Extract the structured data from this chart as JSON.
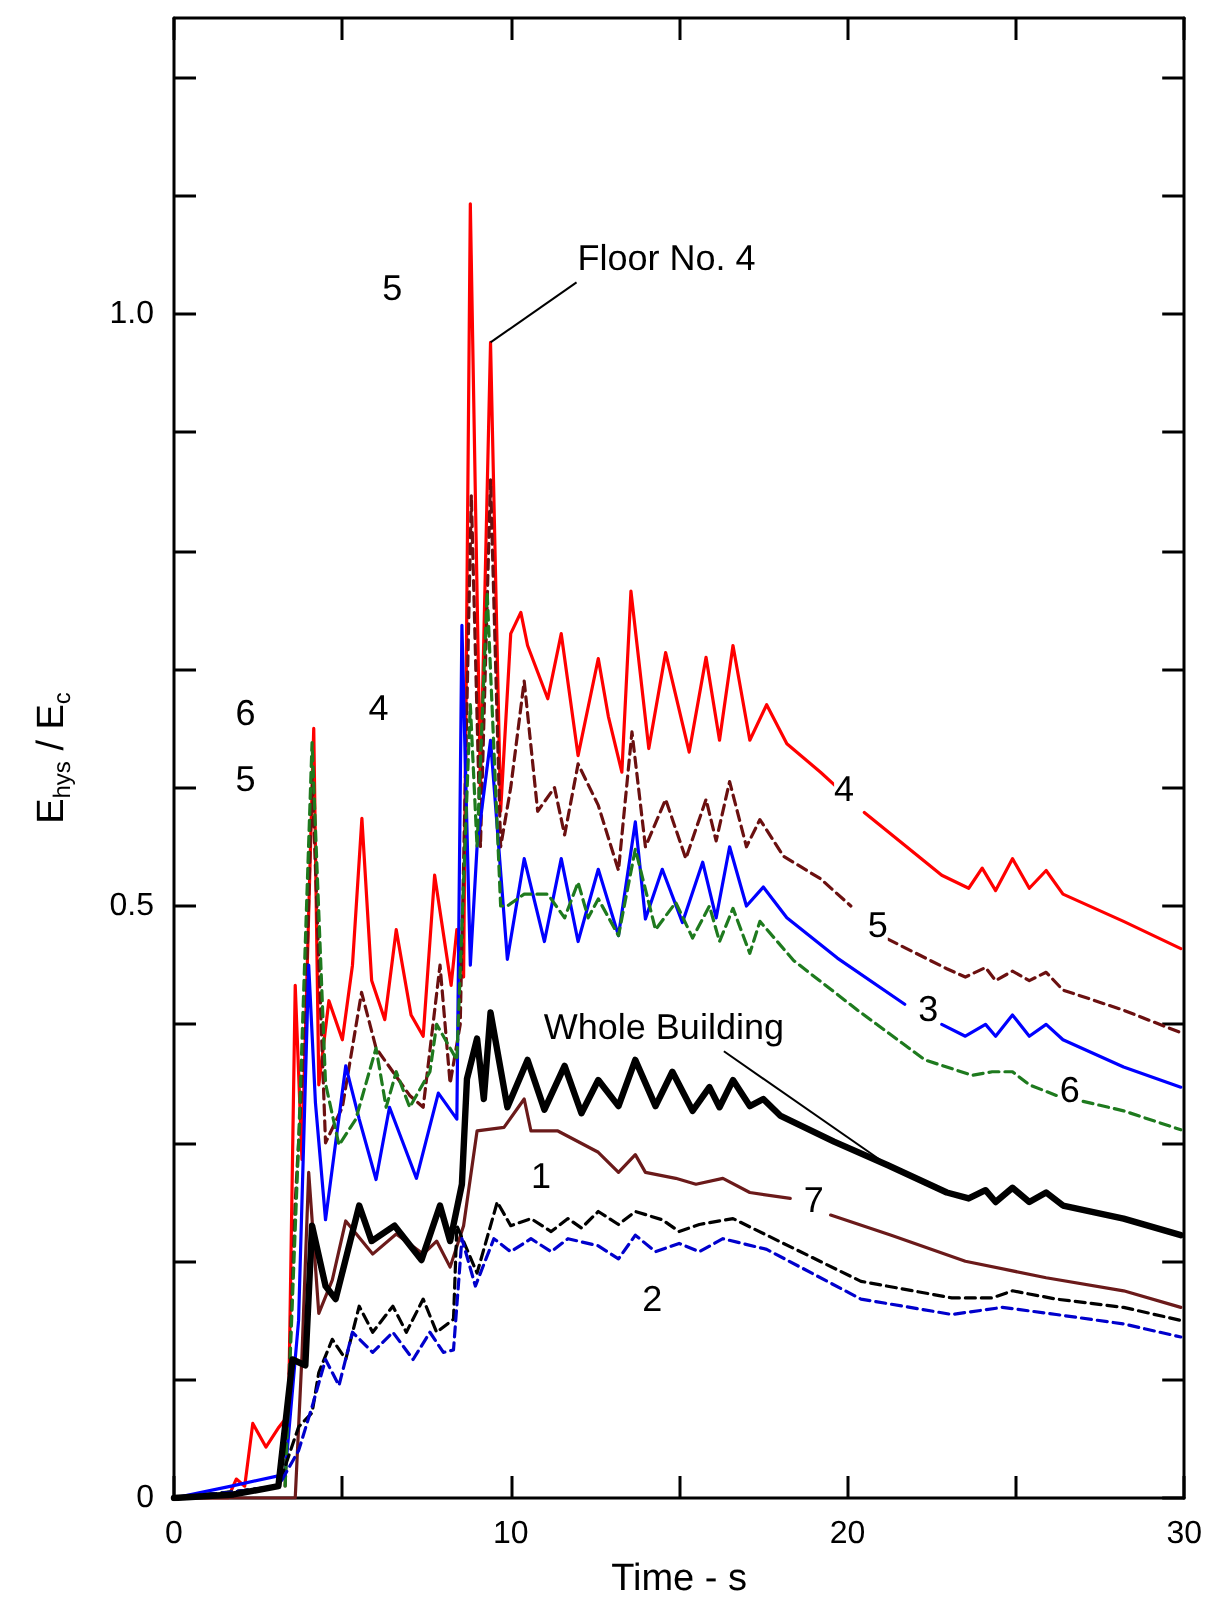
{
  "chart_data": {
    "type": "line",
    "xlabel": "Time - s",
    "ylabel": "E$_{hys}$ / E$_{c}$",
    "xlim": [
      0,
      30
    ],
    "ylim": [
      0,
      1.25
    ],
    "xticks": [
      0,
      {
        "value": 5,
        "label": null
      },
      10,
      {
        "value": 15,
        "label": null
      },
      20,
      {
        "value": 25,
        "label": null
      },
      30
    ],
    "yticks": [
      0,
      {
        "value": 0.1,
        "label": null
      },
      {
        "value": 0.2,
        "label": null
      },
      {
        "value": 0.3,
        "label": null
      },
      {
        "value": 0.4,
        "label": null
      },
      0.5,
      {
        "value": 0.6,
        "label": null
      },
      {
        "value": 0.7,
        "label": null
      },
      {
        "value": 0.8,
        "label": null
      },
      {
        "value": 0.9,
        "label": null
      },
      {
        "value": 1,
        "label": "1.0"
      },
      {
        "value": 1.1,
        "label": null
      },
      {
        "value": 1.2,
        "label": null
      }
    ],
    "series": [
      {
        "color": "#ff0000",
        "line_style": "solid",
        "x": [
          0,
          1.6,
          1.85,
          2.1,
          2.34,
          2.73,
          3.12,
          3.4,
          3.6,
          3.8,
          4.15,
          4.3,
          4.6,
          5.0,
          5.3,
          5.58,
          5.87,
          6.26,
          6.6,
          7.04,
          7.4,
          7.74,
          8.23,
          8.4,
          8.6,
          8.8,
          9.1,
          9.4,
          9.7,
          10.0,
          10.3,
          10.5,
          11.1,
          11.5,
          12.0,
          12.6,
          12.9,
          13.3,
          13.57,
          14.1,
          14.6,
          15.3,
          15.8,
          16.2,
          16.6,
          17.1,
          17.6,
          18.2,
          19.2,
          19.7,
          19.9,
          20.5,
          22.8,
          23.6,
          24.0,
          24.4,
          24.9,
          25.4,
          25.9,
          26.4,
          28.2,
          29.9
        ],
        "values": [
          0,
          0,
          0.016,
          0.01,
          0.063,
          0.043,
          0.06,
          0.07,
          0.433,
          0.286,
          0.65,
          0.349,
          0.42,
          0.387,
          0.45,
          0.574,
          0.437,
          0.404,
          0.48,
          0.408,
          0.39,
          0.526,
          0.433,
          0.48,
          0.44,
          1.093,
          0.6,
          0.976,
          0.58,
          0.73,
          0.748,
          0.72,
          0.675,
          0.73,
          0.627,
          0.709,
          0.66,
          0.613,
          0.766,
          0.633,
          0.714,
          0.63,
          0.71,
          0.64,
          0.72,
          0.64,
          0.67,
          0.637,
          0.613,
          0.6,
          null,
          0.579,
          0.526,
          0.515,
          0.532,
          0.513,
          0.54,
          0.515,
          0.53,
          0.51,
          0.487,
          0.464
        ]
      },
      {
        "color": "#6b1010",
        "line_style": "dashed",
        "x": [
          0,
          3.3,
          3.6,
          3.9,
          4.1,
          4.5,
          5.0,
          5.57,
          6.0,
          6.5,
          7.0,
          7.4,
          7.9,
          8.2,
          8.5,
          8.83,
          9.1,
          9.4,
          9.7,
          10.0,
          10.4,
          10.8,
          11.3,
          11.6,
          12.0,
          12.6,
          13.2,
          13.6,
          14.0,
          14.6,
          15.2,
          15.8,
          16.1,
          16.5,
          17.0,
          17.4,
          18.1,
          19.2,
          20.1,
          20.6,
          21.2,
          22.95,
          23.5,
          24.1,
          24.4,
          24.9,
          25.4,
          25.9,
          26.4,
          28.2,
          29.9
        ],
        "values": [
          0,
          0.01,
          0.25,
          0.4,
          0.61,
          0.3,
          0.33,
          0.427,
          0.38,
          0.36,
          0.34,
          0.33,
          0.45,
          0.35,
          0.4,
          0.847,
          0.55,
          0.86,
          0.55,
          0.6,
          0.69,
          0.58,
          0.6,
          0.56,
          0.62,
          0.585,
          0.53,
          0.647,
          0.55,
          0.59,
          0.54,
          0.59,
          0.555,
          0.605,
          0.55,
          0.573,
          0.542,
          0.523,
          0.5,
          null,
          0.472,
          0.447,
          0.44,
          0.448,
          0.437,
          0.445,
          0.437,
          0.444,
          0.429,
          0.412,
          0.393
        ]
      },
      {
        "color": "#0000ff",
        "line_style": "solid",
        "x": [
          0,
          1.7,
          3.3,
          3.7,
          4.0,
          4.2,
          4.5,
          5.1,
          5.5,
          6.0,
          6.4,
          6.8,
          7.2,
          7.85,
          8.4,
          8.55,
          8.8,
          9.0,
          9.4,
          9.9,
          10.4,
          11.0,
          11.5,
          12.0,
          12.6,
          13.2,
          13.7,
          14.0,
          14.5,
          15.1,
          15.7,
          16.1,
          16.5,
          17.0,
          17.5,
          18.2,
          19.7,
          21.7,
          22.0,
          22.8,
          23.5,
          24.1,
          24.4,
          24.9,
          25.4,
          25.9,
          26.4,
          28.2,
          29.9
        ],
        "values": [
          0,
          0.01,
          0.02,
          0.15,
          0.45,
          0.334,
          0.235,
          0.365,
          0.32,
          0.269,
          0.33,
          0.3,
          0.27,
          0.342,
          0.32,
          0.737,
          0.45,
          0.55,
          0.64,
          0.455,
          0.54,
          0.47,
          0.54,
          0.47,
          0.531,
          0.475,
          0.571,
          0.489,
          0.531,
          0.486,
          0.537,
          0.49,
          0.55,
          0.5,
          0.516,
          0.49,
          0.456,
          0.417,
          null,
          0.4,
          0.39,
          0.4,
          0.39,
          0.408,
          0.39,
          0.4,
          0.387,
          0.364,
          0.347
        ]
      },
      {
        "color": "#1e7a1e",
        "line_style": "dashed",
        "x": [
          0,
          3.3,
          3.7,
          4.1,
          4.5,
          4.9,
          5.4,
          6.0,
          6.3,
          6.6,
          7.0,
          7.6,
          7.8,
          8.4,
          8.8,
          9.0,
          9.3,
          9.7,
          9.9,
          10.4,
          11.1,
          11.6,
          12.0,
          12.3,
          12.6,
          13.2,
          13.7,
          14.3,
          14.9,
          15.4,
          15.9,
          16.2,
          16.6,
          17.1,
          17.4,
          18.4,
          20.3,
          22.3,
          23.7,
          24.3,
          24.9,
          25.4,
          26.2,
          26.4,
          27.0,
          28.2,
          29.9
        ],
        "values": [
          0,
          0.01,
          0.3,
          0.638,
          0.35,
          0.298,
          0.32,
          0.38,
          0.33,
          0.36,
          0.33,
          0.36,
          0.4,
          0.37,
          0.67,
          0.55,
          0.765,
          0.5,
          0.5,
          0.51,
          0.51,
          0.49,
          0.52,
          0.49,
          0.506,
          0.475,
          0.548,
          0.48,
          0.503,
          0.473,
          0.5,
          0.47,
          0.498,
          0.46,
          0.487,
          0.454,
          0.412,
          0.37,
          0.357,
          0.36,
          0.36,
          0.349,
          0.34,
          null,
          0.335,
          0.327,
          0.311
        ]
      },
      {
        "color": "#6b1a1a",
        "line_style": "solid",
        "x": [
          0,
          3.6,
          3.8,
          4.0,
          4.3,
          4.7,
          5.1,
          5.9,
          6.6,
          7.4,
          7.8,
          8.2,
          8.6,
          9.0,
          9.8,
          10.4,
          10.6,
          11.4,
          12.6,
          13.2,
          13.7,
          14.0,
          14.9,
          15.5,
          16.3,
          17.1,
          18.3,
          18.9,
          19.5,
          21.3,
          23.5,
          25.9,
          28.2,
          29.9
        ],
        "values": [
          0,
          0,
          0.12,
          0.275,
          0.156,
          0.184,
          0.234,
          0.206,
          0.223,
          0.206,
          0.217,
          0.195,
          0.23,
          0.31,
          0.313,
          0.337,
          0.31,
          0.31,
          0.292,
          0.275,
          0.29,
          0.275,
          0.27,
          0.265,
          0.27,
          0.258,
          0.253,
          null,
          0.239,
          0.222,
          0.2,
          0.186,
          0.175,
          0.161
        ]
      },
      {
        "color": "#000000",
        "line_style": "dashed",
        "x": [
          0,
          1.7,
          3.1,
          3.7,
          4.1,
          4.3,
          4.7,
          5.1,
          5.5,
          5.9,
          6.5,
          6.9,
          7.4,
          7.8,
          8.3,
          8.4,
          9.0,
          9.6,
          10.0,
          10.6,
          11.2,
          11.7,
          12.1,
          12.6,
          13.2,
          13.7,
          14.5,
          15.0,
          15.6,
          16.6,
          17.6,
          20.4,
          23.1,
          24.3,
          24.9,
          26.2,
          28.2,
          29.9
        ],
        "values": [
          0,
          0.005,
          0.01,
          0.06,
          0.072,
          0.106,
          0.134,
          0.117,
          0.162,
          0.14,
          0.162,
          0.14,
          0.168,
          0.14,
          0.151,
          0.23,
          0.19,
          0.25,
          0.23,
          0.236,
          0.225,
          0.236,
          0.228,
          0.242,
          0.231,
          0.242,
          0.235,
          0.225,
          0.231,
          0.236,
          0.222,
          0.183,
          0.169,
          0.169,
          0.175,
          0.168,
          0.161,
          0.15
        ]
      },
      {
        "color": "#0000cc",
        "line_style": "dashed",
        "x": [
          0,
          1.7,
          3.1,
          3.7,
          4.1,
          4.5,
          4.9,
          5.3,
          5.9,
          6.5,
          7.1,
          7.6,
          8.0,
          8.3,
          8.55,
          8.95,
          9.5,
          10.0,
          10.6,
          11.2,
          11.7,
          12.6,
          13.2,
          13.7,
          14.3,
          15.0,
          15.6,
          16.3,
          17.6,
          20.4,
          23.1,
          24.6,
          26.2,
          28.2,
          29.9
        ],
        "values": [
          0,
          0.005,
          0.01,
          0.04,
          0.077,
          0.117,
          0.095,
          0.14,
          0.123,
          0.14,
          0.117,
          0.14,
          0.123,
          0.125,
          0.219,
          0.179,
          0.219,
          0.208,
          0.219,
          0.208,
          0.219,
          0.213,
          0.202,
          0.222,
          0.208,
          0.215,
          0.208,
          0.219,
          0.21,
          0.168,
          0.155,
          0.161,
          0.155,
          0.147,
          0.136
        ]
      },
      {
        "color": "#000000",
        "line_style": "solid",
        "x": [
          0,
          1.77,
          3.1,
          3.52,
          3.9,
          4.1,
          4.5,
          4.8,
          5.5,
          5.87,
          6.55,
          7.35,
          7.9,
          8.2,
          8.55,
          8.7,
          9.0,
          9.2,
          9.4,
          9.9,
          10.5,
          11.0,
          11.6,
          12.1,
          12.6,
          13.2,
          13.7,
          14.3,
          14.8,
          15.4,
          15.9,
          16.2,
          16.6,
          17.1,
          17.5,
          18.0,
          19.6,
          21.2,
          22.95,
          23.6,
          24.1,
          24.4,
          24.9,
          25.4,
          25.9,
          26.4,
          28.2,
          29.9
        ],
        "values": [
          0,
          0.003,
          0.01,
          0.117,
          0.112,
          0.23,
          0.179,
          0.168,
          0.247,
          0.217,
          0.23,
          0.201,
          0.247,
          0.217,
          0.265,
          0.354,
          0.388,
          0.337,
          0.41,
          0.33,
          0.37,
          0.328,
          0.365,
          0.325,
          0.353,
          0.331,
          0.37,
          0.331,
          0.36,
          0.327,
          0.347,
          0.33,
          0.353,
          0.331,
          0.337,
          0.323,
          0.301,
          0.281,
          0.258,
          0.253,
          0.26,
          0.25,
          0.262,
          0.25,
          0.258,
          0.247,
          0.236,
          0.222
        ]
      }
    ],
    "annotations": [
      {
        "text": "Floor No. 4",
        "x": 9.4,
        "y": 0.976
      },
      {
        "text": "5",
        "x": 6.48,
        "y": 1.022
      },
      {
        "text": "6",
        "x": 2.12,
        "y": 0.663
      },
      {
        "text": "5",
        "x": 2.12,
        "y": 0.607
      },
      {
        "text": "4",
        "x": 6.07,
        "y": 0.667
      },
      {
        "text": "4",
        "x": 19.9,
        "y": 0.599
      },
      {
        "text": "5",
        "x": 20.9,
        "y": 0.484
      },
      {
        "text": "3",
        "x": 22.4,
        "y": 0.413
      },
      {
        "text": "6",
        "x": 26.6,
        "y": 0.345
      },
      {
        "text": "7",
        "x": 19.0,
        "y": 0.252
      },
      {
        "text": "Whole Building",
        "x": 21.2,
        "y": 0.281
      },
      {
        "text": "1",
        "x": 10.9,
        "y": 0.272
      },
      {
        "text": "2",
        "x": 14.2,
        "y": 0.168
      }
    ]
  }
}
